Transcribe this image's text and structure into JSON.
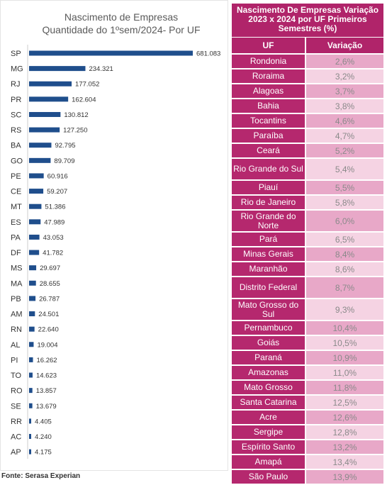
{
  "chart_data": {
    "type": "bar",
    "orientation": "horizontal",
    "title": "Nascimento de Empresas",
    "subtitle": "Quantidade do 1ºsem/2024- Por UF",
    "categories": [
      "SP",
      "MG",
      "RJ",
      "PR",
      "SC",
      "RS",
      "BA",
      "GO",
      "PE",
      "CE",
      "MT",
      "ES",
      "PA",
      "DF",
      "MS",
      "MA",
      "PB",
      "AM",
      "RN",
      "AL",
      "PI",
      "TO",
      "RO",
      "SE",
      "RR",
      "AC",
      "AP"
    ],
    "values": [
      681083,
      234321,
      177052,
      162604,
      130812,
      127250,
      92795,
      89709,
      60916,
      59207,
      51386,
      47989,
      43053,
      41782,
      29697,
      28655,
      26787,
      24501,
      22640,
      19004,
      16262,
      14623,
      13857,
      13679,
      4405,
      4240,
      4175
    ],
    "value_labels": [
      "681.083",
      "234.321",
      "177.052",
      "162.604",
      "130.812",
      "127.250",
      "92.795",
      "89.709",
      "60.916",
      "59.207",
      "51.386",
      "47.989",
      "43.053",
      "41.782",
      "29.697",
      "28.655",
      "26.787",
      "24.501",
      "22.640",
      "19.004",
      "16.262",
      "14.623",
      "13.857",
      "13.679",
      "4.405",
      "4.240",
      "4.175"
    ],
    "bar_color": "#1f4e8c",
    "grid": false
  },
  "table": {
    "title": "Nascimento De Empresas Variação 2023 x 2024 por UF Primeiros Semestres (%)",
    "col_uf": "UF",
    "col_var": "Variação",
    "header_color": "#b0246a",
    "rows": [
      {
        "uf": "Rondonia",
        "var": "2,6%"
      },
      {
        "uf": "Roraima",
        "var": "3,2%"
      },
      {
        "uf": "Alagoas",
        "var": "3,7%"
      },
      {
        "uf": "Bahia",
        "var": "3,8%"
      },
      {
        "uf": "Tocantins",
        "var": "4,6%"
      },
      {
        "uf": "Paraíba",
        "var": "4,7%"
      },
      {
        "uf": "Ceará",
        "var": "5,2%"
      },
      {
        "uf": "Rio Grande do Sul",
        "var": "5,4%"
      },
      {
        "uf": "Piauí",
        "var": "5,5%"
      },
      {
        "uf": "Rio de Janeiro",
        "var": "5,8%"
      },
      {
        "uf": "Rio Grande do Norte",
        "var": "6,0%"
      },
      {
        "uf": "Pará",
        "var": "6,5%"
      },
      {
        "uf": "Minas Gerais",
        "var": "8,4%"
      },
      {
        "uf": "Maranhão",
        "var": "8,6%"
      },
      {
        "uf": "Distrito Federal",
        "var": "8,7%"
      },
      {
        "uf": "Mato Grosso do Sul",
        "var": "9,3%"
      },
      {
        "uf": "Pernambuco",
        "var": "10,4%"
      },
      {
        "uf": "Goiás",
        "var": "10,5%"
      },
      {
        "uf": "Paraná",
        "var": "10,9%"
      },
      {
        "uf": "Amazonas",
        "var": "11,0%"
      },
      {
        "uf": "Mato Grosso",
        "var": "11,8%"
      },
      {
        "uf": "Santa Catarina",
        "var": "12,5%"
      },
      {
        "uf": "Acre",
        "var": "12,6%"
      },
      {
        "uf": "Sergipe",
        "var": "12,8%"
      },
      {
        "uf": "Espírito Santo",
        "var": "13,2%"
      },
      {
        "uf": "Amapá",
        "var": "13,4%"
      },
      {
        "uf": "São Paulo",
        "var": "13,9%"
      }
    ]
  },
  "source": "Fonte: Serasa Experian"
}
